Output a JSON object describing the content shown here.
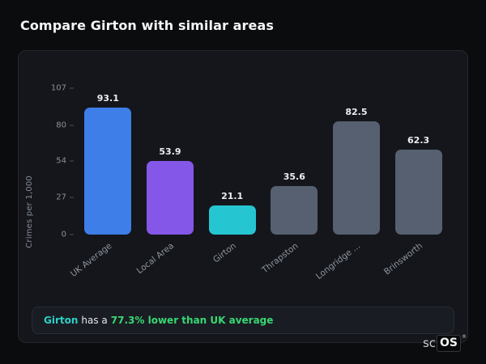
{
  "page": {
    "title": "Compare Girton with similar areas"
  },
  "chart_data": {
    "type": "bar",
    "title": "Compare Girton with similar areas",
    "xlabel": "",
    "ylabel": "Crimes per 1,000",
    "categories": [
      "UK Average",
      "Local Area",
      "Girton",
      "Thrapston",
      "Longridge ...",
      "Brinsworth"
    ],
    "values": [
      93.1,
      53.9,
      21.1,
      35.6,
      82.5,
      62.3
    ],
    "value_labels": [
      "93.1",
      "53.9",
      "21.1",
      "35.6",
      "82.5",
      "62.3"
    ],
    "bar_colors": [
      "#3d7ee8",
      "#8457e8",
      "#26c5d2",
      "#566070",
      "#566070",
      "#566070"
    ],
    "yticks": [
      0,
      27,
      54,
      80,
      107
    ],
    "ylim": [
      0,
      107
    ],
    "grid": false,
    "legend": false
  },
  "footer": {
    "subject": "Girton",
    "connector": "has a",
    "stat": "77.3% lower than UK average",
    "subject_color": "#2bd0c6",
    "stat_color": "#39d773"
  },
  "logo": {
    "prefix": "sc",
    "box": "OS",
    "reg": "®"
  }
}
